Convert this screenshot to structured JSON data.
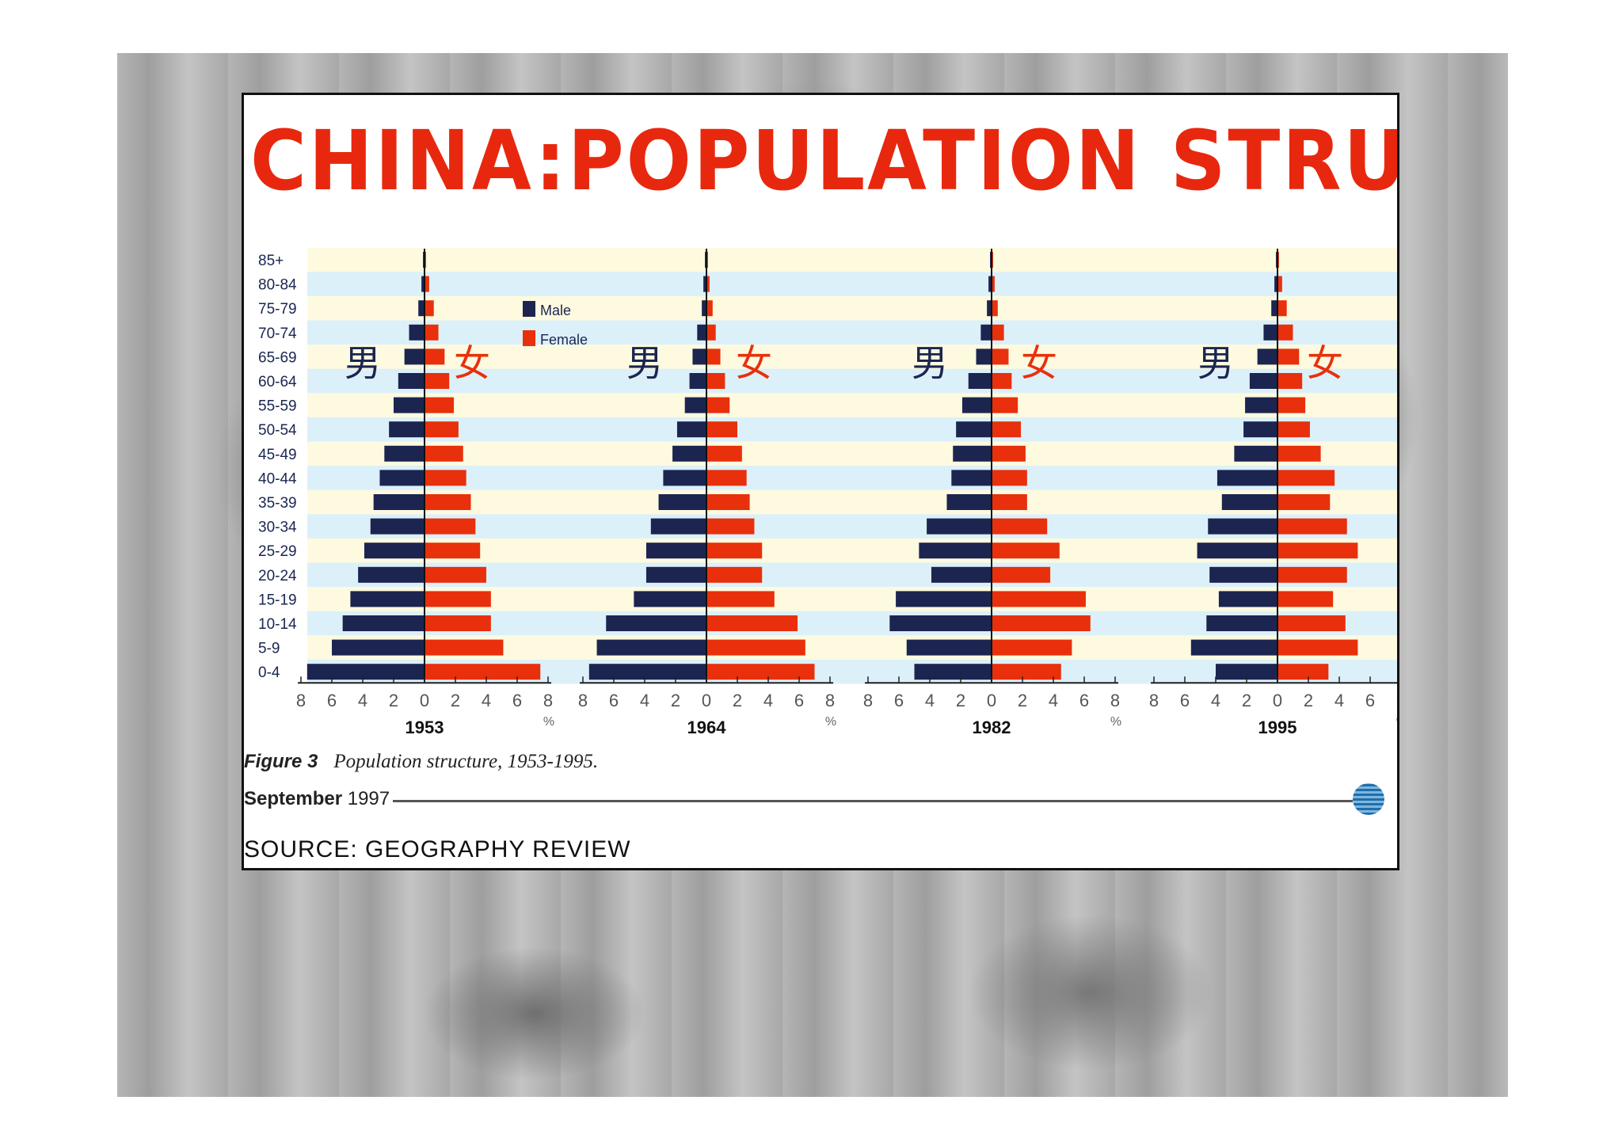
{
  "title": "CHINA:POPULATION STRUCTURE",
  "caption": {
    "label": "Figure 3",
    "text": "Population structure, 1953-1995."
  },
  "footer_date": {
    "month": "September",
    "year": "1997"
  },
  "source": "SOURCE: GEOGRAPHY REVIEW",
  "colors": {
    "male": "#1c2550",
    "female": "#e8300c",
    "title": "#e8280e",
    "band_blue": "#bfe4f5",
    "band_yellow": "#fbf5c4"
  },
  "chart_data": {
    "type": "bar",
    "subtype": "population-pyramid",
    "age_groups": [
      "85+",
      "80-84",
      "75-79",
      "70-74",
      "65-69",
      "60-64",
      "55-59",
      "50-54",
      "45-49",
      "40-44",
      "35-39",
      "30-34",
      "25-29",
      "20-24",
      "15-19",
      "10-14",
      "5-9",
      "0-4"
    ],
    "legend": [
      {
        "name": "Male",
        "color": "#1c2550"
      },
      {
        "name": "Female",
        "color": "#e8300c"
      }
    ],
    "legend_position": "top-right of first pyramid",
    "sex_symbols": {
      "male": "男",
      "female": "女"
    },
    "x_ticks": [
      "8",
      "6",
      "4",
      "2",
      "0",
      "2",
      "4",
      "6",
      "8"
    ],
    "x_unit": "%",
    "xlim": [
      0,
      8
    ],
    "pyramids": [
      {
        "year": "1953",
        "male": [
          0.1,
          0.2,
          0.4,
          1.0,
          1.3,
          1.7,
          2.0,
          2.3,
          2.6,
          2.9,
          3.3,
          3.5,
          3.9,
          4.3,
          4.8,
          5.3,
          6.0,
          7.6
        ],
        "female": [
          0.1,
          0.3,
          0.6,
          0.9,
          1.3,
          1.6,
          1.9,
          2.2,
          2.5,
          2.7,
          3.0,
          3.3,
          3.6,
          4.0,
          4.3,
          4.3,
          5.1,
          7.5
        ]
      },
      {
        "year": "1964",
        "male": [
          0.1,
          0.2,
          0.3,
          0.6,
          0.9,
          1.1,
          1.4,
          1.9,
          2.2,
          2.8,
          3.1,
          3.6,
          3.9,
          3.9,
          4.7,
          6.5,
          7.1,
          7.6
        ],
        "female": [
          0.1,
          0.2,
          0.4,
          0.6,
          0.9,
          1.2,
          1.5,
          2.0,
          2.3,
          2.6,
          2.8,
          3.1,
          3.6,
          3.6,
          4.4,
          5.9,
          6.4,
          7.0
        ]
      },
      {
        "year": "1982",
        "male": [
          0.1,
          0.2,
          0.3,
          0.7,
          1.0,
          1.5,
          1.9,
          2.3,
          2.5,
          2.6,
          2.9,
          4.2,
          4.7,
          3.9,
          6.2,
          6.6,
          5.5,
          5.0
        ],
        "female": [
          0.1,
          0.2,
          0.4,
          0.8,
          1.1,
          1.3,
          1.7,
          1.9,
          2.2,
          2.3,
          2.3,
          3.6,
          4.4,
          3.8,
          6.1,
          6.4,
          5.2,
          4.5
        ]
      },
      {
        "year": "1995",
        "male": [
          0.1,
          0.2,
          0.4,
          0.9,
          1.3,
          1.8,
          2.1,
          2.2,
          2.8,
          3.9,
          3.6,
          4.5,
          5.2,
          4.4,
          3.8,
          4.6,
          5.6,
          4.0
        ],
        "female": [
          0.1,
          0.3,
          0.6,
          1.0,
          1.4,
          1.6,
          1.8,
          2.1,
          2.8,
          3.7,
          3.4,
          4.5,
          5.2,
          4.5,
          3.6,
          4.4,
          5.2,
          3.3
        ]
      }
    ]
  }
}
